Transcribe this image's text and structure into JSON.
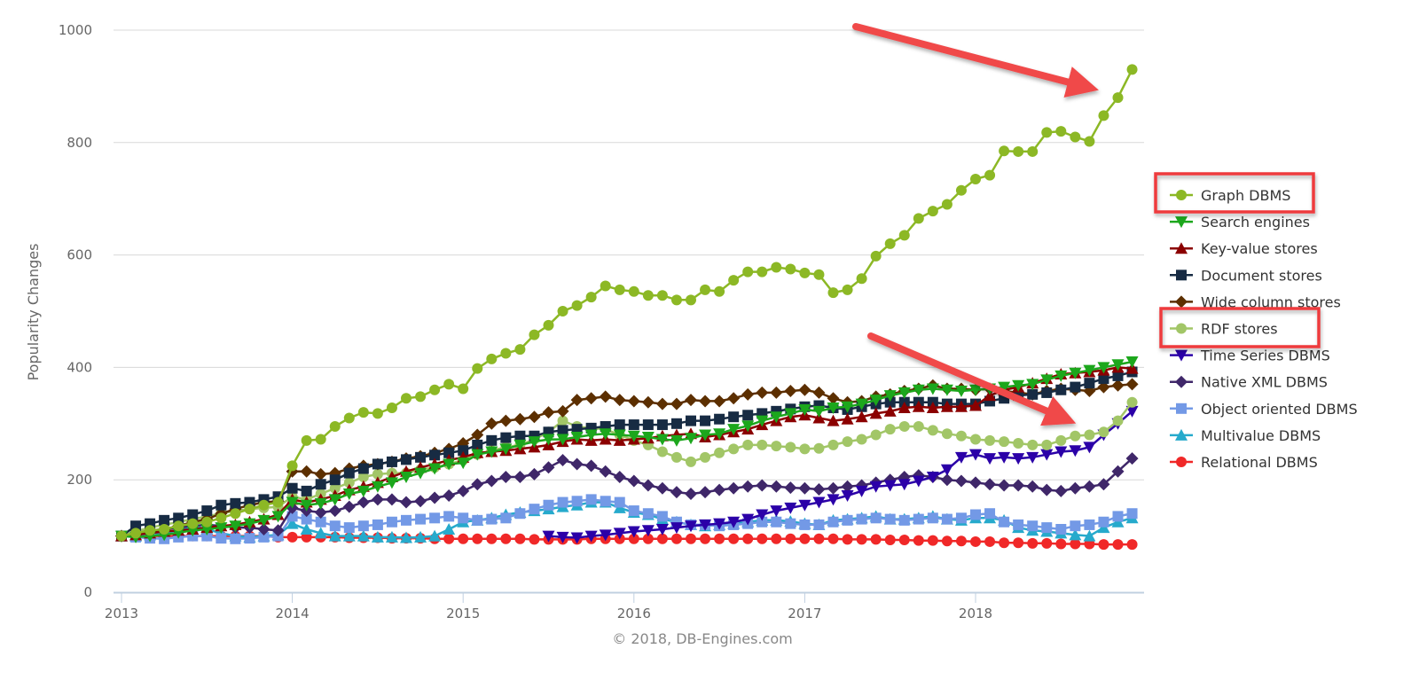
{
  "chart_data": {
    "type": "line",
    "title": "",
    "xlabel": "",
    "ylabel": "Popularity Changes",
    "ylim": [
      0,
      1000
    ],
    "yticks": [
      "0",
      "200",
      "400",
      "600",
      "800",
      "1000"
    ],
    "xticks": [
      "2013",
      "2014",
      "2015",
      "2016",
      "2017",
      "2018"
    ],
    "x_start": "2013-01",
    "x_step": "month",
    "grid": true,
    "legend_position": "right",
    "credit": "© 2018, DB-Engines.com",
    "highlighted": [
      "Graph DBMS",
      "RDF stores"
    ],
    "series": [
      {
        "name": "Graph DBMS",
        "color": "#8cb825",
        "marker": "circle",
        "values": [
          100,
          105,
          110,
          112,
          118,
          122,
          125,
          132,
          140,
          148,
          155,
          160,
          225,
          270,
          272,
          295,
          310,
          320,
          318,
          328,
          345,
          348,
          360,
          370,
          362,
          398,
          415,
          425,
          432,
          458,
          475,
          500,
          510,
          525,
          545,
          538,
          535,
          528,
          528,
          520,
          520,
          538,
          535,
          555,
          570,
          570,
          578,
          575,
          568,
          565,
          533,
          538,
          558,
          598,
          620,
          635,
          665,
          678,
          690,
          715,
          735,
          742,
          785,
          784,
          784,
          818,
          820,
          810,
          802,
          848,
          880,
          930
        ]
      },
      {
        "name": "Search engines",
        "color": "#1ca71c",
        "marker": "triangle-down",
        "values": [
          100,
          98,
          100,
          102,
          106,
          110,
          112,
          115,
          118,
          122,
          128,
          135,
          160,
          155,
          158,
          165,
          175,
          180,
          188,
          195,
          205,
          212,
          220,
          228,
          230,
          245,
          250,
          255,
          262,
          268,
          272,
          272,
          276,
          280,
          282,
          280,
          278,
          276,
          272,
          270,
          274,
          280,
          282,
          290,
          296,
          305,
          312,
          318,
          325,
          322,
          328,
          330,
          335,
          342,
          350,
          355,
          360,
          362,
          360,
          358,
          360,
          362,
          365,
          368,
          370,
          378,
          385,
          390,
          395,
          400,
          405,
          410
        ]
      },
      {
        "name": "Key-value stores",
        "color": "#8b0000",
        "marker": "triangle-up",
        "values": [
          100,
          102,
          105,
          108,
          110,
          112,
          115,
          118,
          120,
          125,
          130,
          138,
          165,
          160,
          165,
          172,
          182,
          188,
          195,
          205,
          215,
          222,
          228,
          235,
          240,
          248,
          250,
          252,
          255,
          258,
          262,
          268,
          272,
          270,
          272,
          270,
          272,
          274,
          278,
          280,
          282,
          276,
          280,
          285,
          290,
          298,
          305,
          312,
          315,
          310,
          305,
          308,
          312,
          318,
          322,
          328,
          330,
          328,
          330,
          330,
          332,
          350,
          360,
          365,
          372,
          380,
          388,
          390,
          392,
          395,
          400,
          398
        ]
      },
      {
        "name": "Document stores",
        "color": "#172b43",
        "marker": "square",
        "values": [
          100,
          118,
          122,
          128,
          132,
          138,
          145,
          155,
          158,
          160,
          165,
          170,
          185,
          180,
          192,
          200,
          212,
          220,
          228,
          232,
          236,
          240,
          244,
          248,
          252,
          262,
          270,
          275,
          278,
          278,
          285,
          288,
          290,
          292,
          295,
          298,
          298,
          298,
          298,
          300,
          305,
          305,
          308,
          312,
          315,
          318,
          322,
          326,
          330,
          332,
          328,
          325,
          330,
          335,
          338,
          338,
          338,
          338,
          335,
          335,
          335,
          340,
          345,
          350,
          352,
          355,
          360,
          365,
          372,
          380,
          385,
          392
        ]
      },
      {
        "name": "Wide column stores",
        "color": "#5c2f00",
        "marker": "diamond",
        "values": [
          100,
          102,
          108,
          112,
          118,
          125,
          130,
          140,
          148,
          155,
          160,
          162,
          215,
          215,
          210,
          212,
          220,
          225,
          228,
          232,
          238,
          242,
          248,
          255,
          265,
          280,
          300,
          305,
          308,
          312,
          320,
          322,
          342,
          345,
          348,
          342,
          340,
          338,
          335,
          335,
          342,
          340,
          340,
          345,
          352,
          355,
          355,
          358,
          360,
          355,
          345,
          338,
          340,
          348,
          352,
          358,
          362,
          368,
          362,
          362,
          360,
          362,
          358,
          355,
          352,
          358,
          362,
          360,
          358,
          365,
          368,
          370
        ]
      },
      {
        "name": "RDF stores",
        "color": "#a2c667",
        "marker": "circle",
        "values": [
          100,
          108,
          115,
          120,
          125,
          130,
          135,
          140,
          145,
          148,
          150,
          152,
          170,
          165,
          175,
          185,
          195,
          205,
          210,
          212,
          212,
          218,
          222,
          228,
          235,
          245,
          252,
          258,
          262,
          272,
          285,
          305,
          295,
          292,
          290,
          280,
          270,
          262,
          250,
          240,
          232,
          240,
          248,
          255,
          262,
          262,
          260,
          258,
          255,
          256,
          262,
          268,
          272,
          280,
          290,
          295,
          295,
          288,
          282,
          278,
          272,
          270,
          268,
          265,
          262,
          262,
          270,
          278,
          280,
          285,
          305,
          338
        ]
      },
      {
        "name": "Time Series DBMS",
        "color": "#2b00a8",
        "marker": "triangle-down",
        "values": [
          null,
          null,
          null,
          null,
          null,
          null,
          null,
          null,
          null,
          null,
          null,
          null,
          null,
          null,
          null,
          null,
          null,
          null,
          null,
          null,
          null,
          null,
          null,
          null,
          null,
          null,
          null,
          null,
          null,
          null,
          100,
          98,
          97,
          100,
          102,
          105,
          108,
          110,
          112,
          115,
          118,
          120,
          122,
          125,
          130,
          138,
          145,
          150,
          155,
          160,
          165,
          172,
          180,
          188,
          190,
          192,
          198,
          205,
          218,
          240,
          245,
          238,
          240,
          238,
          240,
          245,
          250,
          252,
          258,
          280,
          300,
          322
        ]
      },
      {
        "name": "Native XML DBMS",
        "color": "#3f2769",
        "marker": "diamond",
        "values": [
          100,
          105,
          110,
          112,
          115,
          118,
          120,
          118,
          115,
          115,
          112,
          110,
          150,
          145,
          142,
          145,
          152,
          160,
          165,
          165,
          160,
          162,
          168,
          172,
          180,
          192,
          198,
          205,
          205,
          210,
          222,
          235,
          228,
          225,
          215,
          205,
          198,
          190,
          185,
          178,
          175,
          178,
          182,
          185,
          188,
          190,
          188,
          186,
          185,
          183,
          185,
          188,
          190,
          195,
          200,
          205,
          208,
          205,
          200,
          198,
          195,
          192,
          190,
          190,
          188,
          182,
          180,
          185,
          188,
          192,
          215,
          238
        ]
      },
      {
        "name": "Object oriented DBMS",
        "color": "#7399e6",
        "marker": "square",
        "values": [
          100,
          98,
          96,
          95,
          98,
          100,
          100,
          96,
          95,
          96,
          98,
          100,
          135,
          130,
          125,
          118,
          115,
          118,
          120,
          125,
          128,
          130,
          132,
          135,
          132,
          128,
          130,
          132,
          140,
          148,
          155,
          160,
          162,
          165,
          162,
          160,
          145,
          140,
          135,
          125,
          120,
          120,
          118,
          120,
          122,
          125,
          125,
          122,
          120,
          120,
          125,
          128,
          130,
          132,
          130,
          128,
          130,
          132,
          130,
          132,
          138,
          140,
          125,
          120,
          118,
          115,
          112,
          118,
          120,
          125,
          135,
          140
        ]
      },
      {
        "name": "Multivalue DBMS",
        "color": "#26aacc",
        "marker": "triangle-up",
        "values": [
          100,
          100,
          102,
          105,
          110,
          118,
          112,
          105,
          100,
          98,
          100,
          102,
          122,
          112,
          105,
          100,
          100,
          100,
          98,
          98,
          97,
          98,
          100,
          112,
          125,
          128,
          132,
          138,
          142,
          145,
          148,
          152,
          155,
          160,
          160,
          150,
          142,
          138,
          130,
          125,
          120,
          118,
          120,
          122,
          125,
          128,
          128,
          126,
          122,
          120,
          128,
          130,
          132,
          135,
          130,
          130,
          132,
          135,
          130,
          128,
          132,
          132,
          128,
          115,
          110,
          108,
          105,
          102,
          100,
          115,
          125,
          132
        ]
      },
      {
        "name": "Relational DBMS",
        "color": "#f02828",
        "marker": "circle",
        "values": [
          100,
          100,
          100,
          100,
          100,
          100,
          100,
          100,
          100,
          100,
          100,
          98,
          98,
          98,
          98,
          98,
          97,
          97,
          97,
          96,
          96,
          96,
          95,
          95,
          95,
          95,
          95,
          95,
          95,
          94,
          94,
          94,
          94,
          95,
          95,
          95,
          95,
          95,
          95,
          95,
          95,
          95,
          95,
          95,
          95,
          95,
          95,
          95,
          95,
          95,
          95,
          94,
          94,
          94,
          93,
          93,
          92,
          92,
          91,
          91,
          90,
          90,
          88,
          88,
          87,
          87,
          86,
          86,
          86,
          85,
          85,
          85
        ]
      }
    ]
  }
}
